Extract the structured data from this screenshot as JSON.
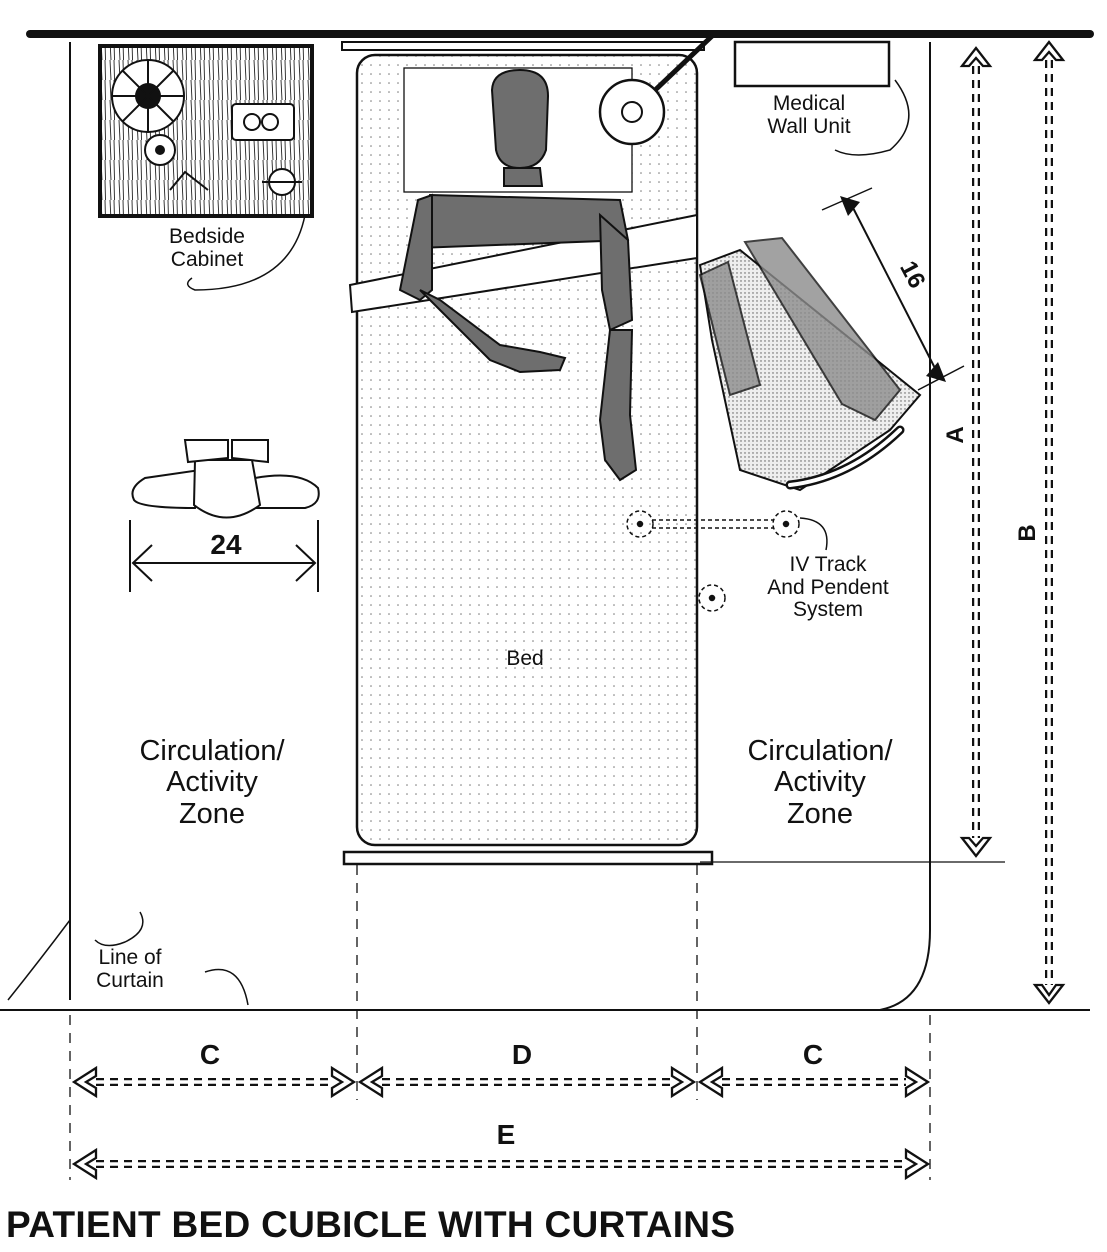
{
  "title": "PATIENT BED CUBICLE WITH CURTAINS",
  "labels": {
    "bedside_cabinet": "Bedside\nCabinet",
    "medical_wall_unit": "Medical\nWall Unit",
    "iv_track": "IV Track\nAnd Pendent\nSystem",
    "bed": "Bed",
    "zone_left": "Circulation/\nActivity\nZone",
    "zone_right": "Circulation/\nActivity\nZone",
    "line_of_curtain": "Line of\nCurtain"
  },
  "dimensions": {
    "a": "A",
    "b": "B",
    "c_left": "C",
    "d": "D",
    "c_right": "C",
    "e": "E",
    "chair_clearance": "16",
    "person_width": "24"
  },
  "colors": {
    "ink": "#111111",
    "figure_fill": "#6e6e6e",
    "bed_fill": "#f6f6f6"
  }
}
